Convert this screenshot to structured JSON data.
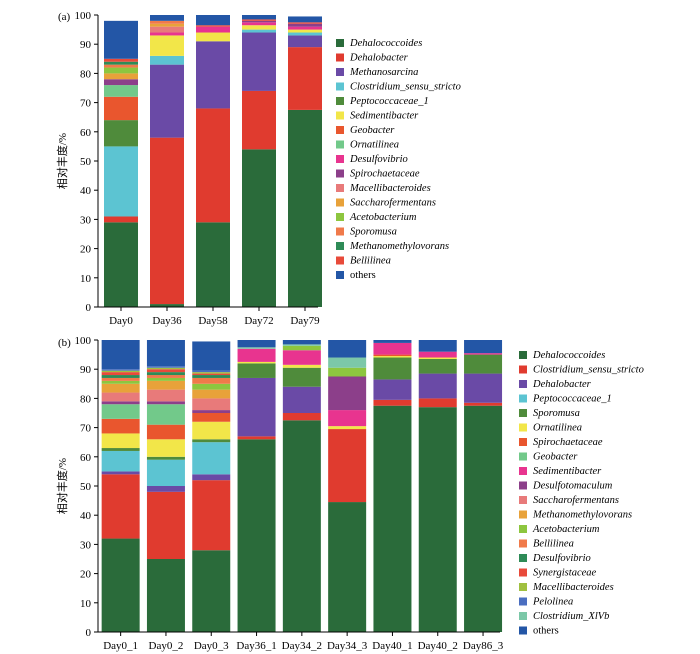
{
  "chart_data": [
    {
      "panel_label": "(a)",
      "type": "bar",
      "stacked": true,
      "ylabel": "相对丰度/%",
      "ylim": [
        0,
        100
      ],
      "yticks": [
        0,
        10,
        20,
        30,
        40,
        50,
        60,
        70,
        80,
        90,
        100
      ],
      "categories": [
        "Day0",
        "Day36",
        "Day58",
        "Day72",
        "Day79"
      ],
      "series": [
        {
          "name": "Dehalococcoides",
          "color": "#2a6b3a",
          "italic": true,
          "values": [
            29,
            1,
            29,
            54,
            67.5
          ]
        },
        {
          "name": "Dehalobacter",
          "color": "#e03b2f",
          "italic": true,
          "values": [
            2,
            57,
            39,
            20,
            21.5
          ]
        },
        {
          "name": "Methanosarcina",
          "color": "#6a4aa6",
          "italic": true,
          "values": [
            0,
            25,
            23,
            20,
            4
          ]
        },
        {
          "name": "Clostridium_sensu_stricto",
          "color": "#5cc4d2",
          "italic": true,
          "values": [
            24,
            3,
            0,
            1,
            1
          ]
        },
        {
          "name": "Peptococcaceae_1",
          "color": "#4f8b3b",
          "italic": true,
          "values": [
            9,
            0,
            0,
            0,
            0
          ]
        },
        {
          "name": "Sedimentibacter",
          "color": "#f2e649",
          "italic": true,
          "values": [
            0,
            7,
            3,
            1.5,
            1
          ]
        },
        {
          "name": "Geobacter",
          "color": "#e9562e",
          "italic": true,
          "values": [
            8,
            0,
            0,
            0,
            0
          ]
        },
        {
          "name": "Ornatilinea",
          "color": "#72c98a",
          "italic": true,
          "values": [
            4,
            0,
            0,
            0,
            0
          ]
        },
        {
          "name": "Desulfovibrio",
          "color": "#e8348f",
          "italic": true,
          "values": [
            0,
            1,
            2,
            1,
            1
          ]
        },
        {
          "name": "Spirochaetaceae",
          "color": "#8c3f8a",
          "italic": true,
          "values": [
            2,
            0,
            0,
            0.5,
            1
          ]
        },
        {
          "name": "Macellibacteroides",
          "color": "#e87a7a",
          "italic": true,
          "values": [
            0,
            2,
            0,
            0,
            0
          ]
        },
        {
          "name": "Saccharofermentans",
          "color": "#e8a23a",
          "italic": true,
          "values": [
            2,
            1,
            0,
            0,
            0
          ]
        },
        {
          "name": "Acetobacterium",
          "color": "#8dc63f",
          "italic": true,
          "values": [
            2,
            0,
            0,
            0,
            0
          ]
        },
        {
          "name": "Sporomusa",
          "color": "#f07a4a",
          "italic": true,
          "values": [
            1,
            1,
            0,
            0,
            0
          ]
        },
        {
          "name": "Methanomethylovorans",
          "color": "#2e8b57",
          "italic": true,
          "values": [
            1,
            0,
            0,
            0,
            0
          ]
        },
        {
          "name": "Bellilinea",
          "color": "#e84a3a",
          "italic": true,
          "values": [
            1,
            0,
            0.5,
            0.5,
            0.5
          ]
        },
        {
          "name": "others",
          "color": "#2356a6",
          "italic": false,
          "values": [
            13,
            2,
            3.5,
            1.5,
            2
          ]
        }
      ]
    },
    {
      "panel_label": "(b)",
      "type": "bar",
      "stacked": true,
      "ylabel": "相对丰度/%",
      "ylim": [
        0,
        100
      ],
      "yticks": [
        0,
        10,
        20,
        30,
        40,
        50,
        60,
        70,
        80,
        90,
        100
      ],
      "categories": [
        "Day0_1",
        "Day0_2",
        "Day0_3",
        "Day36_1",
        "Day34_2",
        "Day34_3",
        "Day40_1",
        "Day40_2",
        "Day86_3"
      ],
      "series": [
        {
          "name": "Dehalococcoides",
          "color": "#2a6b3a",
          "italic": true,
          "values": [
            32,
            25,
            28,
            66,
            72.5,
            44.5,
            77.5,
            77,
            77.5
          ]
        },
        {
          "name": "Clostridium_sensu_stricto",
          "color": "#e03b2f",
          "italic": true,
          "values": [
            22,
            23,
            24,
            1,
            2.5,
            25,
            2,
            3,
            1
          ]
        },
        {
          "name": "Dehalobacter",
          "color": "#6a4aa6",
          "italic": true,
          "values": [
            1,
            2,
            2,
            20,
            9,
            0,
            7,
            8.5,
            10
          ]
        },
        {
          "name": "Peptococcaceae_1",
          "color": "#5cc4d2",
          "italic": true,
          "values": [
            7,
            9,
            11,
            0,
            0,
            0,
            0,
            0,
            0
          ]
        },
        {
          "name": "Sporomusa",
          "color": "#4f8b3b",
          "italic": true,
          "values": [
            1,
            1,
            1,
            5,
            6.5,
            0,
            7.5,
            5,
            6.5
          ]
        },
        {
          "name": "Ornatilinea",
          "color": "#f2e649",
          "italic": true,
          "values": [
            5,
            6,
            6,
            0.5,
            1,
            1,
            0.5,
            0.5,
            0
          ]
        },
        {
          "name": "Spirochaetaceae",
          "color": "#e9562e",
          "italic": true,
          "values": [
            5,
            5,
            3,
            0,
            0,
            0,
            0.5,
            0,
            0
          ]
        },
        {
          "name": "Geobacter",
          "color": "#72c98a",
          "italic": true,
          "values": [
            5,
            7,
            0,
            0,
            0,
            0,
            0,
            0,
            0
          ]
        },
        {
          "name": "Sedimentibacter",
          "color": "#e8348f",
          "italic": true,
          "values": [
            0,
            0,
            0,
            4.5,
            5,
            5.5,
            4,
            2,
            0.5
          ]
        },
        {
          "name": "Desulfotomaculum",
          "color": "#8c3f8a",
          "italic": true,
          "values": [
            1,
            1,
            1,
            0,
            0,
            11.5,
            0,
            0,
            0
          ]
        },
        {
          "name": "Saccharofermentans",
          "color": "#e87a7a",
          "italic": true,
          "values": [
            3,
            4,
            4,
            0,
            0,
            0,
            0,
            0,
            0
          ]
        },
        {
          "name": "Methanomethylovorans",
          "color": "#e8a23a",
          "italic": true,
          "values": [
            3,
            3,
            3,
            0,
            0,
            0,
            0,
            0,
            0
          ]
        },
        {
          "name": "Acetobacterium",
          "color": "#8dc63f",
          "italic": true,
          "values": [
            1,
            1,
            2,
            0,
            1.5,
            3,
            0,
            0,
            0
          ]
        },
        {
          "name": "Bellilinea",
          "color": "#f07a4a",
          "italic": true,
          "values": [
            1,
            1,
            2,
            0,
            0,
            0,
            0,
            0,
            0
          ]
        },
        {
          "name": "Desulfovibrio",
          "color": "#2e8b57",
          "italic": true,
          "values": [
            1,
            1,
            1,
            0,
            0,
            0,
            0,
            0,
            0
          ]
        },
        {
          "name": "Synergistaceae",
          "color": "#e84a3a",
          "italic": true,
          "values": [
            1,
            1,
            0.5,
            0,
            0,
            0,
            0,
            0,
            0
          ]
        },
        {
          "name": "Macellibacteroides",
          "color": "#a0c040",
          "italic": true,
          "values": [
            0.5,
            0.5,
            0.5,
            0,
            0,
            0,
            0,
            0,
            0
          ]
        },
        {
          "name": "Pelolinea",
          "color": "#4a6ec0",
          "italic": true,
          "values": [
            0.5,
            0.5,
            0.5,
            0,
            0,
            0,
            0,
            0,
            0
          ]
        },
        {
          "name": "Clostridium_XlVb",
          "color": "#7cc8a8",
          "italic": true,
          "values": [
            0,
            0,
            0,
            0.5,
            0.5,
            3.5,
            0,
            0,
            0
          ]
        },
        {
          "name": "others",
          "color": "#2356a6",
          "italic": false,
          "values": [
            10,
            9,
            10,
            2.5,
            1.5,
            6,
            1,
            4,
            4.5
          ]
        }
      ]
    }
  ]
}
